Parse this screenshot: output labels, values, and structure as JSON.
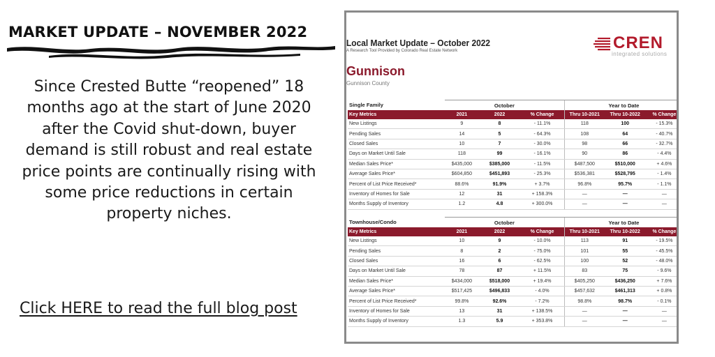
{
  "headline": "MARKET UPDATE – NOVEMBER 2022",
  "body": "Since Crested Butte “reopened” 18 months ago at the start of June 2020 after the Covid shut-down, buyer demand is still robust and real estate price points are continually rising with some price reductions in certain property niches.",
  "cta": "Click HERE to read the full blog post",
  "colors": {
    "accent": "#8b1a2c",
    "logo_red": "#b31b2c"
  },
  "report": {
    "title": "Local Market Update – October 2022",
    "subtitle": "A Research Tool Provided by Colorado Real Estate Network",
    "logo_text": "CREN",
    "logo_sub": "integrated solutions",
    "city": "Gunnison",
    "county": "Gunnison County",
    "columns": [
      "Key Metrics",
      "2021",
      "2022",
      "% Change",
      "Thru 10-2021",
      "Thru 10-2022",
      "% Change"
    ],
    "group_month": "October",
    "group_ytd": "Year to Date",
    "tables": [
      {
        "category": "Single Family",
        "rows": [
          [
            "New Listings",
            "9",
            "8",
            "- 11.1%",
            "118",
            "100",
            "- 15.3%"
          ],
          [
            "Pending Sales",
            "14",
            "5",
            "- 64.3%",
            "108",
            "64",
            "- 40.7%"
          ],
          [
            "Closed Sales",
            "10",
            "7",
            "- 30.0%",
            "98",
            "66",
            "- 32.7%"
          ],
          [
            "Days on Market Until Sale",
            "118",
            "99",
            "- 16.1%",
            "90",
            "86",
            "- 4.4%"
          ],
          [
            "Median Sales Price*",
            "$435,000",
            "$385,000",
            "- 11.5%",
            "$487,500",
            "$510,000",
            "+ 4.6%"
          ],
          [
            "Average Sales Price*",
            "$604,850",
            "$451,893",
            "- 25.3%",
            "$536,381",
            "$528,795",
            "- 1.4%"
          ],
          [
            "Percent of List Price Received*",
            "88.6%",
            "91.9%",
            "+ 3.7%",
            "96.8%",
            "95.7%",
            "- 1.1%"
          ],
          [
            "Inventory of Homes for Sale",
            "12",
            "31",
            "+ 158.3%",
            "—",
            "—",
            "—"
          ],
          [
            "Months Supply of Inventory",
            "1.2",
            "4.8",
            "+ 300.0%",
            "—",
            "—",
            "—"
          ]
        ]
      },
      {
        "category": "Townhouse/Condo",
        "rows": [
          [
            "New Listings",
            "10",
            "9",
            "- 10.0%",
            "113",
            "91",
            "- 19.5%"
          ],
          [
            "Pending Sales",
            "8",
            "2",
            "- 75.0%",
            "101",
            "55",
            "- 45.5%"
          ],
          [
            "Closed Sales",
            "16",
            "6",
            "- 62.5%",
            "100",
            "52",
            "- 48.0%"
          ],
          [
            "Days on Market Until Sale",
            "78",
            "87",
            "+ 11.5%",
            "83",
            "75",
            "- 9.6%"
          ],
          [
            "Median Sales Price*",
            "$434,000",
            "$518,000",
            "+ 19.4%",
            "$405,250",
            "$436,250",
            "+ 7.6%"
          ],
          [
            "Average Sales Price*",
            "$517,425",
            "$496,833",
            "- 4.0%",
            "$457,632",
            "$461,313",
            "+ 0.8%"
          ],
          [
            "Percent of List Price Received*",
            "99.8%",
            "92.6%",
            "- 7.2%",
            "98.8%",
            "98.7%",
            "- 0.1%"
          ],
          [
            "Inventory of Homes for Sale",
            "13",
            "31",
            "+ 138.5%",
            "—",
            "—",
            "—"
          ],
          [
            "Months Supply of Inventory",
            "1.3",
            "5.9",
            "+ 353.8%",
            "—",
            "—",
            "—"
          ]
        ]
      }
    ]
  }
}
